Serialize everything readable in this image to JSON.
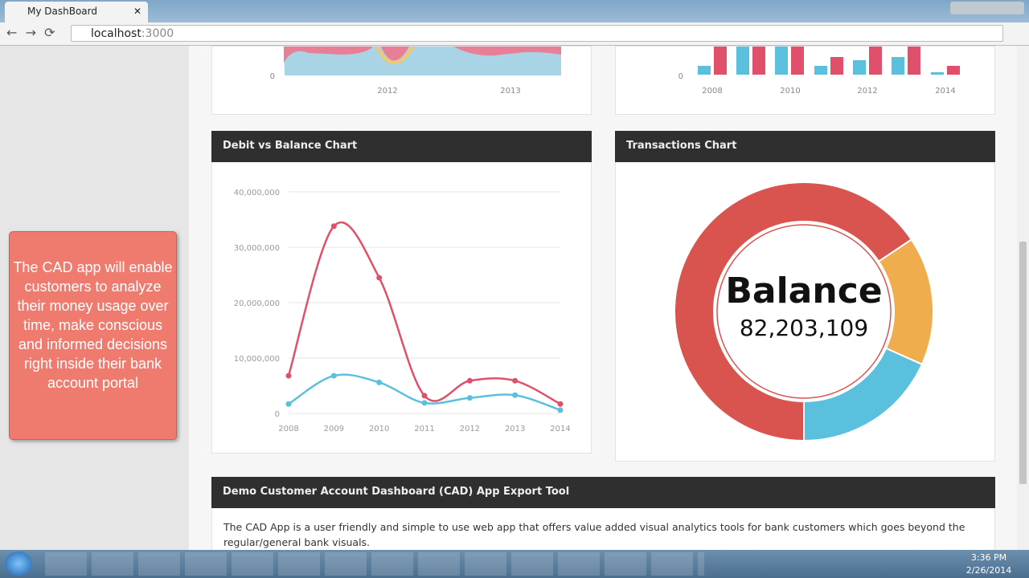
{
  "browser": {
    "tab_title": "My DashBoard",
    "url_host": "localhost",
    "url_port": ":3000"
  },
  "sidebar_note": "The CAD app will enable customers to analyze their money usage over time, make conscious and informed decisions right inside their bank account portal",
  "top_left_chart": {
    "yticks": [
      "0"
    ],
    "xticks": [
      "2012",
      "2013"
    ]
  },
  "top_right_chart": {
    "yticks": [
      "0"
    ],
    "xticks": [
      "2008",
      "2010",
      "2012",
      "2014"
    ]
  },
  "debit_chart": {
    "type": "line",
    "title": "Debit vs Balance Chart",
    "categories": [
      "2008",
      "2009",
      "2010",
      "2011",
      "2012",
      "2013",
      "2014"
    ],
    "ylim": [
      0,
      40000000
    ],
    "yticks": [
      0,
      {
        "value": 10000000,
        "label": "10,000,000"
      },
      {
        "value": 20000000,
        "label": "20,000,000"
      },
      {
        "value": 30000000,
        "label": "30,000,000"
      },
      {
        "value": 40000000,
        "label": "40,000,000"
      }
    ],
    "grid": true,
    "series": [
      {
        "color": "#e0506a",
        "values": [
          6800000,
          33800000,
          24500000,
          3200000,
          5900000,
          5900000,
          1700000
        ]
      },
      {
        "color": "#5bc0de",
        "values": [
          1700000,
          6800000,
          5600000,
          1900000,
          2800000,
          3300000,
          600000
        ]
      }
    ]
  },
  "transactions_chart": {
    "type": "donut",
    "title": "Transactions Chart",
    "center_title": "Balance",
    "center_value": "82,203,109",
    "series": [
      {
        "color": "#d9534f",
        "values": [
          65.6
        ]
      },
      {
        "color": "#f0ad4e",
        "values": [
          16.1
        ]
      },
      {
        "color": "#5bc0de",
        "values": [
          18.3
        ]
      }
    ]
  },
  "export_panel": {
    "title": "Demo Customer Account Dashboard (CAD) App Export Tool",
    "text": "The CAD App is a user friendly and simple to use web app that offers value added visual analytics tools for bank customers which goes beyond the regular/general bank visuals."
  },
  "taskbar": {
    "time": "3:36 PM",
    "date": "2/26/2014"
  }
}
